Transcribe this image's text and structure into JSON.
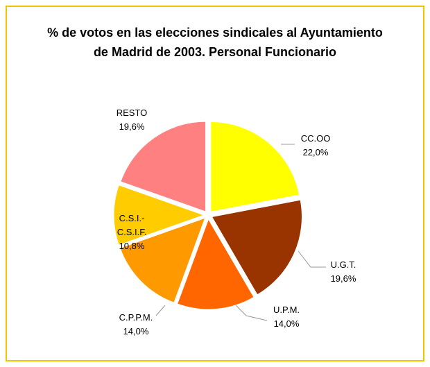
{
  "chart_data": {
    "type": "pie",
    "title": "% de votos en las elecciones sindicales al Ayuntamiento de Madrid de 2003. Personal Funcionario",
    "categories": [
      "CC.OO",
      "U.G.T.",
      "U.P.M.",
      "C.P.P.M.",
      "C.S.I.-C.S.I.F.",
      "RESTO"
    ],
    "values": [
      22.0,
      19.6,
      14.0,
      14.0,
      10.8,
      19.6
    ],
    "value_labels": [
      "22,0%",
      "19,6%",
      "14,0%",
      "14,0%",
      "10,8%",
      "19,6%"
    ],
    "colors": [
      "#ffff00",
      "#993300",
      "#ff6600",
      "#ff9900",
      "#ffcc00",
      "#ff8080"
    ]
  }
}
